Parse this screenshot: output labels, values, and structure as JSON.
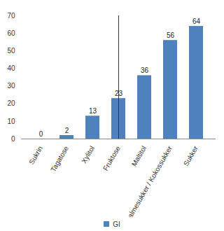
{
  "chart_data": {
    "type": "bar",
    "categories": [
      "Sukrin",
      "Tagatose",
      "Xylitol",
      "Fruktose",
      "Maltitol",
      "Palmesukker / Kokossukker",
      "Sukker"
    ],
    "series": [
      {
        "name": "GI",
        "color": "#4f81bd",
        "values": [
          0,
          2,
          13,
          23,
          36,
          56,
          64
        ]
      }
    ],
    "ylim": [
      0,
      70
    ],
    "yticks": [
      0,
      10,
      20,
      30,
      40,
      50,
      60,
      70
    ],
    "grid": false,
    "data_labels": true,
    "legend": "bottom"
  }
}
